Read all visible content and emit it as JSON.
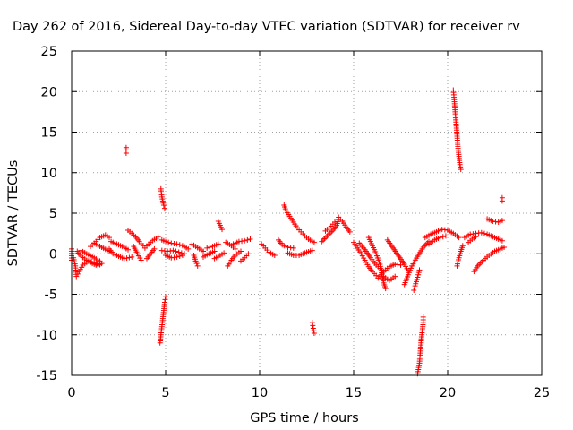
{
  "chart_data": {
    "type": "scatter",
    "title": "Day 262 of 2016, Sidereal Day-to-day VTEC variation (SDTVAR) for receiver rv",
    "xlabel": "GPS time / hours",
    "ylabel": "SDTVAR / TECUs",
    "xlim": [
      0,
      25
    ],
    "ylim": [
      -15,
      25
    ],
    "x_ticks": [
      0,
      5,
      10,
      15,
      20,
      25
    ],
    "y_ticks": [
      -15,
      -10,
      -5,
      0,
      5,
      10,
      15,
      20,
      25
    ],
    "x_tick_labels": [
      "0",
      "5",
      "10",
      "15",
      "20",
      "25"
    ],
    "y_tick_labels": [
      "-15",
      "-10",
      "-5",
      "0",
      "5",
      "10",
      "15",
      "20",
      "25"
    ],
    "grid": true,
    "marker": "plus",
    "color": "#ff0000",
    "series": [
      {
        "segments": [
          [
            [
              0.0,
              0.6
            ],
            [
              0.0,
              -0.8
            ]
          ],
          [
            [
              0.1,
              -0.5
            ],
            [
              0.2,
              -1.5
            ],
            [
              0.25,
              -2.8
            ],
            [
              0.4,
              -2.2
            ],
            [
              0.6,
              -1.4
            ],
            [
              0.9,
              -0.9
            ],
            [
              1.2,
              -1.1
            ],
            [
              1.5,
              -1.3
            ]
          ],
          [
            [
              0.3,
              0.3
            ],
            [
              0.5,
              -0.3
            ],
            [
              0.8,
              -0.8
            ],
            [
              1.1,
              -1.2
            ],
            [
              1.4,
              -1.5
            ],
            [
              1.6,
              -1.2
            ]
          ],
          [
            [
              0.5,
              0.4
            ],
            [
              0.8,
              0.0
            ],
            [
              1.2,
              -0.5
            ],
            [
              1.5,
              -0.9
            ]
          ],
          [
            [
              1.0,
              0.9
            ],
            [
              1.3,
              1.5
            ],
            [
              1.5,
              2.0
            ],
            [
              1.8,
              2.3
            ],
            [
              2.0,
              2.0
            ]
          ],
          [
            [
              1.2,
              1.3
            ],
            [
              1.6,
              0.8
            ],
            [
              2.0,
              0.3
            ]
          ],
          [
            [
              2.0,
              0.6
            ],
            [
              2.2,
              0.0
            ],
            [
              2.5,
              -0.3
            ],
            [
              2.8,
              -0.6
            ],
            [
              3.2,
              -0.4
            ]
          ],
          [
            [
              2.1,
              1.5
            ],
            [
              2.4,
              1.2
            ],
            [
              2.7,
              0.9
            ],
            [
              3.0,
              0.5
            ]
          ],
          [
            [
              2.9,
              12.4
            ],
            [
              2.9,
              12.8
            ],
            [
              2.9,
              13.1
            ]
          ],
          [
            [
              3.0,
              2.9
            ],
            [
              3.2,
              2.5
            ],
            [
              3.4,
              2.1
            ],
            [
              3.6,
              1.5
            ],
            [
              3.8,
              1.0
            ]
          ],
          [
            [
              3.3,
              0.9
            ],
            [
              3.5,
              0.0
            ],
            [
              3.7,
              -0.8
            ]
          ],
          [
            [
              3.9,
              0.7
            ],
            [
              4.1,
              1.2
            ],
            [
              4.3,
              1.6
            ],
            [
              4.5,
              1.9
            ],
            [
              4.6,
              2.1
            ]
          ],
          [
            [
              4.0,
              -0.6
            ],
            [
              4.2,
              0.0
            ],
            [
              4.4,
              0.6
            ]
          ],
          [
            [
              4.75,
              8.0
            ],
            [
              4.8,
              7.0
            ],
            [
              4.85,
              6.5
            ],
            [
              4.9,
              6.0
            ],
            [
              4.95,
              5.6
            ]
          ],
          [
            [
              4.7,
              -11.0
            ],
            [
              4.75,
              -10.0
            ],
            [
              4.8,
              -9.0
            ],
            [
              4.85,
              -8.0
            ],
            [
              4.9,
              -7.0
            ],
            [
              4.95,
              -6.0
            ],
            [
              5.0,
              -5.3
            ]
          ],
          [
            [
              4.8,
              1.7
            ],
            [
              5.0,
              1.5
            ],
            [
              5.3,
              1.3
            ],
            [
              5.6,
              1.2
            ],
            [
              5.9,
              1.0
            ],
            [
              6.2,
              0.6
            ]
          ],
          [
            [
              4.8,
              0.4
            ],
            [
              5.1,
              0.3
            ],
            [
              5.4,
              0.4
            ],
            [
              5.7,
              0.2
            ],
            [
              6.0,
              0.0
            ]
          ],
          [
            [
              5.0,
              -0.2
            ],
            [
              5.3,
              -0.5
            ],
            [
              5.6,
              -0.4
            ],
            [
              5.9,
              -0.2
            ]
          ],
          [
            [
              6.4,
              1.2
            ],
            [
              6.6,
              0.9
            ],
            [
              6.8,
              0.6
            ],
            [
              7.0,
              0.3
            ]
          ],
          [
            [
              6.5,
              -0.2
            ],
            [
              6.6,
              -0.9
            ],
            [
              6.7,
              -1.5
            ]
          ],
          [
            [
              7.0,
              -0.4
            ],
            [
              7.3,
              0.0
            ],
            [
              7.6,
              0.3
            ]
          ],
          [
            [
              7.2,
              0.7
            ],
            [
              7.5,
              0.9
            ],
            [
              7.8,
              1.2
            ]
          ],
          [
            [
              7.8,
              4.0
            ],
            [
              7.9,
              3.5
            ],
            [
              8.0,
              3.0
            ]
          ],
          [
            [
              7.6,
              -0.6
            ],
            [
              7.9,
              -0.2
            ],
            [
              8.1,
              0.1
            ]
          ],
          [
            [
              8.2,
              1.4
            ],
            [
              8.5,
              1.0
            ],
            [
              8.7,
              0.6
            ]
          ],
          [
            [
              8.3,
              -1.5
            ],
            [
              8.5,
              -0.8
            ],
            [
              8.7,
              -0.2
            ],
            [
              9.0,
              0.3
            ]
          ],
          [
            [
              8.6,
              1.2
            ],
            [
              8.9,
              1.5
            ],
            [
              9.2,
              1.6
            ],
            [
              9.5,
              1.8
            ]
          ],
          [
            [
              9.0,
              -0.9
            ],
            [
              9.2,
              -0.5
            ],
            [
              9.4,
              0.0
            ]
          ],
          [
            [
              10.1,
              1.2
            ],
            [
              10.3,
              0.7
            ],
            [
              10.5,
              0.2
            ],
            [
              10.8,
              -0.2
            ]
          ],
          [
            [
              11.0,
              1.7
            ],
            [
              11.2,
              1.1
            ],
            [
              11.5,
              0.8
            ],
            [
              11.8,
              0.7
            ]
          ],
          [
            [
              11.3,
              6.0
            ],
            [
              11.4,
              5.3
            ],
            [
              11.6,
              4.6
            ],
            [
              11.8,
              3.9
            ],
            [
              12.0,
              3.2
            ],
            [
              12.2,
              2.7
            ],
            [
              12.4,
              2.2
            ],
            [
              12.6,
              1.8
            ],
            [
              12.9,
              1.4
            ]
          ],
          [
            [
              11.5,
              0.1
            ],
            [
              11.8,
              -0.2
            ],
            [
              12.1,
              -0.2
            ],
            [
              12.4,
              0.1
            ],
            [
              12.8,
              0.4
            ]
          ],
          [
            [
              12.8,
              -8.5
            ],
            [
              12.85,
              -9.2
            ],
            [
              12.9,
              -9.8
            ]
          ],
          [
            [
              13.3,
              1.5
            ],
            [
              13.6,
              2.2
            ],
            [
              13.9,
              2.9
            ],
            [
              14.1,
              3.5
            ],
            [
              14.2,
              4.2
            ]
          ],
          [
            [
              13.5,
              2.8
            ],
            [
              13.8,
              3.4
            ],
            [
              14.0,
              3.9
            ]
          ],
          [
            [
              14.2,
              4.5
            ],
            [
              14.4,
              4.0
            ],
            [
              14.6,
              3.3
            ],
            [
              14.8,
              2.7
            ]
          ],
          [
            [
              15.0,
              1.4
            ],
            [
              15.2,
              0.7
            ],
            [
              15.4,
              0.0
            ],
            [
              15.6,
              -0.8
            ],
            [
              15.8,
              -1.6
            ],
            [
              16.0,
              -2.2
            ],
            [
              16.2,
              -2.7
            ]
          ],
          [
            [
              15.3,
              1.3
            ],
            [
              15.6,
              0.5
            ],
            [
              15.9,
              -0.5
            ],
            [
              16.2,
              -1.4
            ],
            [
              16.5,
              -2.0
            ]
          ],
          [
            [
              15.8,
              2.0
            ],
            [
              16.0,
              1.0
            ],
            [
              16.2,
              0.0
            ],
            [
              16.4,
              -1.3
            ],
            [
              16.5,
              -2.6
            ],
            [
              16.6,
              -3.6
            ],
            [
              16.7,
              -4.3
            ]
          ],
          [
            [
              16.3,
              -3.0
            ],
            [
              16.6,
              -2.2
            ],
            [
              16.9,
              -1.6
            ],
            [
              17.2,
              -1.3
            ],
            [
              17.5,
              -1.4
            ]
          ],
          [
            [
              16.8,
              1.7
            ],
            [
              17.1,
              0.7
            ],
            [
              17.4,
              -0.3
            ],
            [
              17.7,
              -1.3
            ],
            [
              17.9,
              -2.1
            ]
          ],
          [
            [
              16.6,
              -2.8
            ],
            [
              16.9,
              -3.3
            ],
            [
              17.2,
              -2.8
            ]
          ],
          [
            [
              17.7,
              -3.8
            ],
            [
              17.9,
              -2.6
            ],
            [
              18.1,
              -1.5
            ],
            [
              18.4,
              -0.3
            ],
            [
              18.7,
              0.8
            ],
            [
              19.0,
              1.5
            ]
          ],
          [
            [
              18.2,
              -4.5
            ],
            [
              18.4,
              -2.9
            ],
            [
              18.5,
              -2.0
            ]
          ],
          [
            [
              18.4,
              -14.8
            ],
            [
              18.5,
              -13.5
            ],
            [
              18.55,
              -12.0
            ],
            [
              18.6,
              -10.5
            ],
            [
              18.65,
              -9.5
            ],
            [
              18.7,
              -8.5
            ],
            [
              18.7,
              -7.8
            ]
          ],
          [
            [
              18.8,
              2.0
            ],
            [
              19.1,
              2.4
            ],
            [
              19.4,
              2.7
            ],
            [
              19.7,
              3.0
            ],
            [
              20.0,
              2.9
            ],
            [
              20.3,
              2.5
            ],
            [
              20.6,
              2.0
            ]
          ],
          [
            [
              19.0,
              1.2
            ],
            [
              19.3,
              1.7
            ],
            [
              19.6,
              2.0
            ],
            [
              19.9,
              2.2
            ]
          ],
          [
            [
              20.3,
              20.2
            ],
            [
              20.35,
              19.0
            ],
            [
              20.4,
              17.5
            ],
            [
              20.45,
              16.0
            ],
            [
              20.5,
              14.5
            ],
            [
              20.55,
              13.0
            ],
            [
              20.6,
              12.0
            ],
            [
              20.65,
              11.0
            ],
            [
              20.7,
              10.4
            ]
          ],
          [
            [
              20.5,
              -1.5
            ],
            [
              20.6,
              -0.5
            ],
            [
              20.7,
              0.3
            ],
            [
              20.8,
              1.0
            ]
          ],
          [
            [
              20.9,
              2.0
            ],
            [
              21.2,
              2.4
            ],
            [
              21.5,
              2.5
            ],
            [
              21.8,
              2.6
            ],
            [
              22.1,
              2.4
            ],
            [
              22.4,
              2.1
            ],
            [
              22.7,
              1.8
            ],
            [
              22.9,
              1.6
            ]
          ],
          [
            [
              21.1,
              1.4
            ],
            [
              21.3,
              1.8
            ],
            [
              21.5,
              2.1
            ]
          ],
          [
            [
              21.4,
              -2.2
            ],
            [
              21.6,
              -1.5
            ],
            [
              21.9,
              -0.8
            ],
            [
              22.2,
              -0.2
            ],
            [
              22.5,
              0.3
            ],
            [
              22.8,
              0.6
            ],
            [
              23.0,
              0.8
            ]
          ],
          [
            [
              22.1,
              4.3
            ],
            [
              22.4,
              4.0
            ],
            [
              22.7,
              3.9
            ],
            [
              22.9,
              4.1
            ]
          ],
          [
            [
              22.9,
              6.5
            ],
            [
              22.9,
              6.9
            ]
          ]
        ]
      }
    ]
  }
}
